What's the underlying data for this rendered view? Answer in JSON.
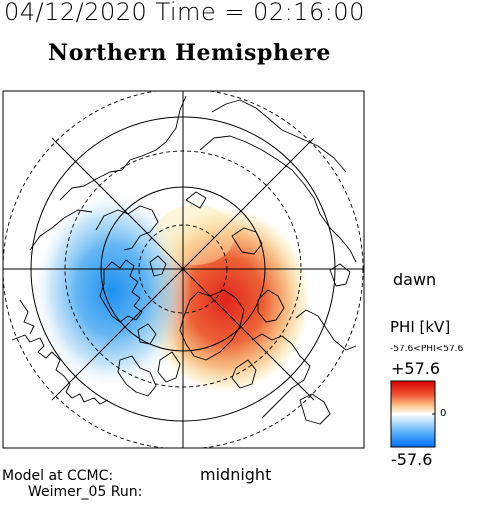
{
  "header": {
    "time_title": "04/12/2020 Time = 02:16:00",
    "hemisphere_title": "Northern Hemisphere"
  },
  "map": {
    "dawn_label": "dawn",
    "midnight_label": "midnight",
    "potential_max": 57.6,
    "potential_min": -57.6,
    "positive_cell_color": "#e0231c",
    "negative_cell_color": "#1e8ff0",
    "pole_latitude": 90,
    "outer_latitude": 50
  },
  "colorbar": {
    "title": "PHI [kV]",
    "range_text": "-57.6<PHI<57.6",
    "max_label": "+57.6",
    "zero_label": "0",
    "min_label": "-57.6",
    "top_color": "#d80000",
    "bottom_color": "#0070ff"
  },
  "footer": {
    "model_line": "Model at CCMC:",
    "run_line": "Weimer_05 Run:"
  }
}
